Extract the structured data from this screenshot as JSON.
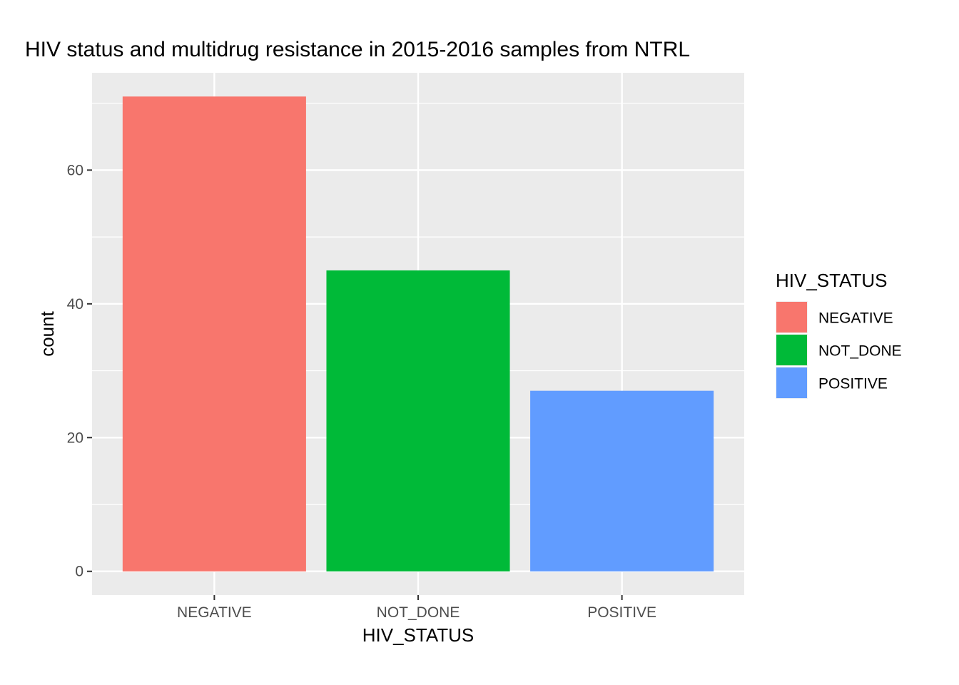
{
  "chart_data": {
    "type": "bar",
    "title": "HIV status and multidrug resistance in 2015-2016 samples from NTRL",
    "xlabel": "HIV_STATUS",
    "ylabel": "count",
    "categories": [
      "NEGATIVE",
      "NOT_DONE",
      "POSITIVE"
    ],
    "values": [
      71,
      45,
      27
    ],
    "colors": [
      "#F8766D",
      "#00BA38",
      "#619CFF"
    ],
    "ylim": [
      -3.55,
      74.55
    ],
    "yticks": [
      0,
      20,
      40,
      60
    ],
    "ytick_labels": [
      "0",
      "20",
      "40",
      "60"
    ],
    "grid": true,
    "panel_background": "#EBEBEB",
    "grid_color": "#FFFFFF",
    "legend": {
      "title": "HIV_STATUS",
      "position": "right",
      "entries": [
        "NEGATIVE",
        "NOT_DONE",
        "POSITIVE"
      ]
    }
  }
}
